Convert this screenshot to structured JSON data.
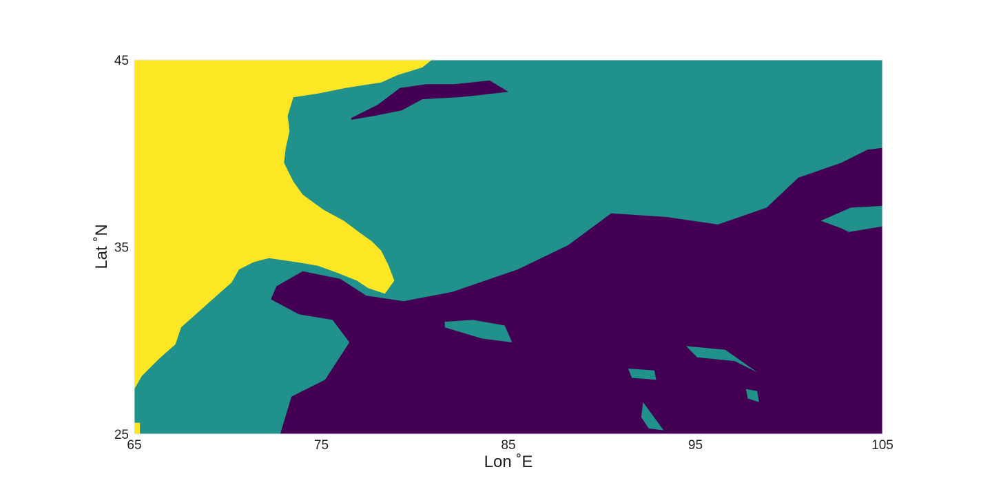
{
  "chart_data": {
    "type": "heatmap",
    "title": "",
    "xlabel": "Lon ˚E",
    "ylabel": "Lat ˚N",
    "xlim": [
      65,
      105
    ],
    "ylim": [
      25,
      45
    ],
    "x_ticks": [
      "65",
      "75",
      "85",
      "95",
      "105"
    ],
    "y_ticks": [
      "25",
      "35",
      "45"
    ],
    "grid": false,
    "colormap": "viridis",
    "class_colors": [
      "#440154",
      "#21918c",
      "#fde725"
    ],
    "regions": [
      {
        "class_index": 2,
        "color": "#fde725",
        "polygons": [
          [
            [
              65,
              45
            ],
            [
              80.9,
              45
            ],
            [
              80.4,
              44.6
            ],
            [
              79.1,
              44.2
            ],
            [
              78.2,
              43.8
            ],
            [
              76.3,
              43.5
            ],
            [
              74.8,
              43.2
            ],
            [
              73.5,
              43
            ],
            [
              73.2,
              42
            ],
            [
              73.3,
              41.2
            ],
            [
              73.1,
              40.3
            ],
            [
              73,
              39.5
            ],
            [
              73.5,
              38.5
            ],
            [
              74,
              37.8
            ],
            [
              75.1,
              37
            ],
            [
              76.2,
              36.4
            ],
            [
              77,
              35.8
            ],
            [
              77.7,
              35.3
            ],
            [
              78.2,
              34.8
            ],
            [
              78.6,
              34
            ],
            [
              78.9,
              33.2
            ],
            [
              78.4,
              32.5
            ],
            [
              77.5,
              32.8
            ],
            [
              76.9,
              33.2
            ],
            [
              75.9,
              33.6
            ],
            [
              74.8,
              34
            ],
            [
              73.6,
              34.2
            ],
            [
              72.2,
              34.4
            ],
            [
              71.4,
              34.2
            ],
            [
              70.6,
              33.8
            ],
            [
              70.2,
              33.1
            ],
            [
              69.4,
              32.4
            ],
            [
              68.4,
              31.5
            ],
            [
              67.5,
              30.7
            ],
            [
              67.2,
              29.8
            ],
            [
              66.3,
              29
            ],
            [
              65.4,
              28.1
            ],
            [
              65,
              27.4
            ]
          ],
          [
            [
              65,
              25.6
            ],
            [
              65.3,
              25.6
            ],
            [
              65.3,
              25
            ],
            [
              65,
              25
            ]
          ]
        ]
      },
      {
        "class_index": 0,
        "color": "#440154",
        "polygons": [
          [
            [
              72.8,
              25
            ],
            [
              73.4,
              27
            ],
            [
              75.2,
              27.9
            ],
            [
              76.5,
              29.9
            ],
            [
              75.6,
              31.1
            ],
            [
              73.8,
              31.4
            ],
            [
              72.3,
              32.2
            ],
            [
              72.6,
              32.9
            ],
            [
              74,
              33.7
            ],
            [
              76,
              33.3
            ],
            [
              77.4,
              32.4
            ],
            [
              79.4,
              32.1
            ],
            [
              82,
              32.6
            ],
            [
              85.5,
              33.8
            ],
            [
              88.2,
              35.1
            ],
            [
              90.5,
              36.8
            ],
            [
              93.5,
              36.6
            ],
            [
              96.2,
              36.2
            ],
            [
              98.8,
              37.1
            ],
            [
              100.5,
              38.7
            ],
            [
              102.8,
              39.5
            ],
            [
              104.2,
              40.2
            ],
            [
              105,
              40.3
            ],
            [
              105,
              25
            ]
          ],
          [
            [
              76.6,
              41.9
            ],
            [
              78,
              42.6
            ],
            [
              79.2,
              43.5
            ],
            [
              80.6,
              43.7
            ],
            [
              82.1,
              43.7
            ],
            [
              84,
              43.9
            ],
            [
              85,
              43.3
            ],
            [
              83.3,
              43.1
            ],
            [
              82.3,
              43
            ],
            [
              80.4,
              42.9
            ],
            [
              79.3,
              42.3
            ],
            [
              77.8,
              42
            ],
            [
              76.6,
              41.8
            ]
          ]
        ]
      },
      {
        "class_index": 1,
        "color": "#21918c",
        "polygons": [
          [
            [
              81.6,
              30.7
            ],
            [
              83.6,
              30.1
            ],
            [
              85.2,
              29.9
            ],
            [
              84.8,
              30.8
            ],
            [
              83.1,
              31.1
            ],
            [
              81.6,
              31
            ]
          ],
          [
            [
              94.5,
              29.7
            ],
            [
              96.6,
              29.5
            ],
            [
              98.3,
              28.3
            ],
            [
              97.1,
              28.9
            ],
            [
              95.1,
              29.1
            ]
          ],
          [
            [
              97.7,
              27.4
            ],
            [
              98.3,
              27.3
            ],
            [
              98.4,
              26.7
            ],
            [
              97.8,
              26.9
            ]
          ],
          [
            [
              91.4,
              28.5
            ],
            [
              92.8,
              28.4
            ],
            [
              92.9,
              27.9
            ],
            [
              91.6,
              28
            ]
          ],
          [
            [
              92.2,
              26.7
            ],
            [
              93.3,
              25.2
            ],
            [
              92.5,
              25.3
            ],
            [
              92.1,
              25.9
            ]
          ],
          [
            [
              101.7,
              36.4
            ],
            [
              103.3,
              37.1
            ],
            [
              105,
              37.2
            ],
            [
              105,
              36.1
            ],
            [
              103.2,
              35.8
            ],
            [
              102.8,
              36
            ]
          ]
        ]
      }
    ]
  }
}
